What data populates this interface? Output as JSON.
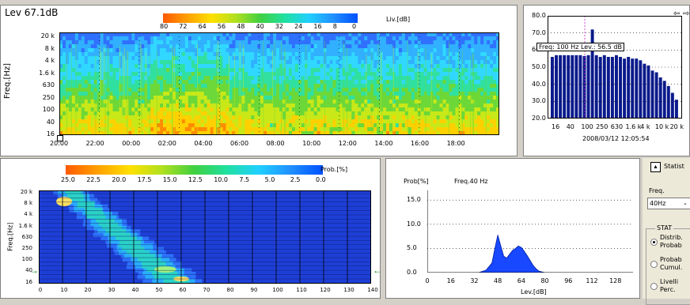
{
  "spectrogram": {
    "title": "Lev 67.1dB",
    "colorbar_ticks": [
      "80",
      "72",
      "64",
      "56",
      "48",
      "40",
      "32",
      "24",
      "16",
      "8",
      "0"
    ],
    "colorbar_unit": "Liv.[dB]",
    "ylabel": "Freq.[Hz]",
    "yticks": [
      "20 k",
      "8 k",
      "4 k",
      "1.6 k",
      "630",
      "250",
      "100",
      "40",
      "16"
    ],
    "xticks": [
      "20:00",
      "22:00",
      "00:00",
      "02:00",
      "04:00",
      "06:00",
      "08:00",
      "10:00",
      "12:00",
      "14:00",
      "16:00",
      "18:00"
    ]
  },
  "spectrum": {
    "yticks": [
      "80.0",
      "70.0",
      "60.0",
      "50.0",
      "40.0",
      "30.0",
      "20.0"
    ],
    "xticks": [
      "16",
      "40",
      "100",
      "250",
      "630",
      "1.6 k",
      "4 k",
      "10 k",
      "20 k"
    ],
    "tooltip": "Freq: 100 Hz Lev.: 56.5 dB",
    "timestamp": "2008/03/12 12:05:54",
    "nav_icons": [
      "arrow-left-icon",
      "arrow-right-icon"
    ]
  },
  "probmap": {
    "colorbar_ticks": [
      "25.0",
      "22.5",
      "20.0",
      "17.5",
      "15.0",
      "12.5",
      "10.0",
      "7.5",
      "5.0",
      "2.5",
      "0.0"
    ],
    "colorbar_unit": "Prob.[%]",
    "ylabel": "Freq.[Hz]",
    "yticks": [
      "20 k",
      "8 k",
      "4 k",
      "1.6 k",
      "630",
      "250",
      "100",
      "40",
      "16"
    ],
    "xticks": [
      "0",
      "10",
      "20",
      "30",
      "40",
      "50",
      "60",
      "70",
      "80",
      "90",
      "100",
      "110",
      "120",
      "130",
      "140"
    ]
  },
  "histogram": {
    "ylabel": "Prob[%]",
    "freq_label": "Freq.40 Hz",
    "yticks": [
      "15.0",
      "10.0",
      "5.0",
      "0.0"
    ],
    "xticks": [
      "0",
      "16",
      "32",
      "48",
      "64",
      "80",
      "96",
      "112",
      "128"
    ],
    "xlabel": "Lev.[dB]"
  },
  "stats_panel": {
    "title": "Statist",
    "freq_label": "Freq.",
    "freq_value": "40Hz",
    "group_label": "STAT",
    "options": [
      {
        "line1": "Distrib.",
        "line2": "Probab",
        "selected": true
      },
      {
        "line1": "Probab",
        "line2": "Cumul.",
        "selected": false
      },
      {
        "line1": "Livelli",
        "line2": "Perc.",
        "selected": false
      }
    ]
  },
  "chart_data": [
    {
      "type": "bar",
      "categories": [
        "16",
        "20",
        "25",
        "31.5",
        "40",
        "50",
        "63",
        "80",
        "100",
        "125",
        "160",
        "200",
        "250",
        "315",
        "400",
        "500",
        "630",
        "800",
        "1 k",
        "1.25 k",
        "1.6 k",
        "2 k",
        "2.5 k",
        "3.15 k",
        "4 k",
        "5 k",
        "6.3 k",
        "8 k",
        "10 k",
        "12.5 k",
        "16 k",
        "20 k"
      ],
      "values": [
        56,
        57,
        57,
        57,
        57,
        57,
        57,
        57,
        56.5,
        57,
        72,
        57,
        56,
        57,
        56,
        56,
        57,
        56,
        55,
        56,
        55,
        55,
        54,
        52,
        51,
        48,
        47,
        44,
        42,
        39,
        35,
        31
      ],
      "ylim": [
        20,
        80
      ]
    },
    {
      "type": "area",
      "x": [
        35,
        40,
        44,
        46,
        48,
        50,
        52,
        54,
        56,
        58,
        60,
        62,
        64,
        66,
        68,
        70,
        72,
        74,
        76,
        80
      ],
      "y": [
        0,
        0.5,
        2,
        5,
        7.8,
        5.5,
        3.4,
        3,
        3.8,
        4.6,
        5,
        5.5,
        5.2,
        4.4,
        3.5,
        2.5,
        1.5,
        0.8,
        0.3,
        0
      ],
      "xlim": [
        0,
        140
      ],
      "ylim": [
        0,
        17
      ]
    }
  ],
  "colors": {
    "bar": "#0a1a8c",
    "hist_fill": "#1848ff",
    "arrow": "#1a8a1a"
  }
}
